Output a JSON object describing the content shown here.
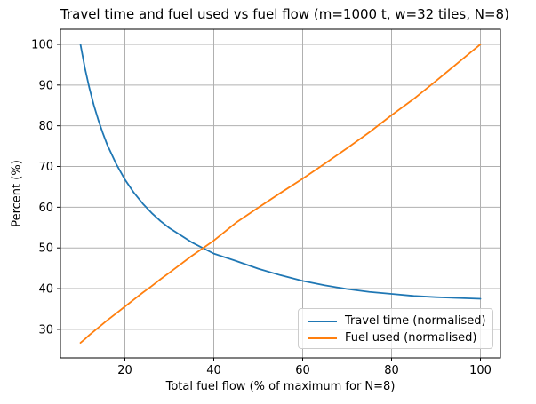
{
  "chart_data": {
    "type": "line",
    "title": "Travel time and fuel used vs fuel flow (m=1000 t, w=32 tiles, N=8)",
    "xlabel": "Total fuel flow (% of maximum for N=8)",
    "ylabel": "Percent (%)",
    "x": [
      10,
      11,
      12,
      13,
      14,
      15,
      16,
      18,
      20,
      22,
      24,
      26,
      28,
      30,
      35,
      40,
      45,
      50,
      55,
      60,
      65,
      70,
      75,
      80,
      85,
      90,
      95,
      100
    ],
    "series": [
      {
        "name": "Travel time (normalised)",
        "color": "#1f77b4",
        "values": [
          100,
          94.2,
          89.3,
          85.1,
          81.5,
          78.3,
          75.4,
          70.7,
          66.8,
          63.6,
          60.9,
          58.6,
          56.6,
          54.9,
          51.4,
          48.6,
          46.8,
          44.9,
          43.3,
          41.9,
          40.8,
          39.9,
          39.2,
          38.7,
          38.2,
          37.9,
          37.7,
          37.5
        ]
      },
      {
        "name": "Fuel used (normalised)",
        "color": "#ff7f0e",
        "values": [
          26.7,
          27.6,
          28.6,
          29.5,
          30.4,
          31.3,
          32.2,
          33.9,
          35.6,
          37.3,
          39.0,
          40.6,
          42.3,
          43.9,
          48.0,
          51.8,
          56.2,
          59.9,
          63.5,
          67.0,
          70.7,
          74.5,
          78.4,
          82.6,
          86.6,
          91.0,
          95.5,
          100.0
        ]
      }
    ],
    "xlim": [
      5.5,
      104.5
    ],
    "ylim": [
      23.0,
      103.7
    ],
    "xticks": [
      20,
      40,
      60,
      80,
      100
    ],
    "yticks": [
      30,
      40,
      50,
      60,
      70,
      80,
      90,
      100
    ],
    "grid": true,
    "grid_color": "#b0b0b0",
    "axis_color": "#000000",
    "tick_label_color": "#000000",
    "background": "#ffffff",
    "legend": {
      "position": "lower right",
      "border_color": "#cccccc"
    }
  }
}
